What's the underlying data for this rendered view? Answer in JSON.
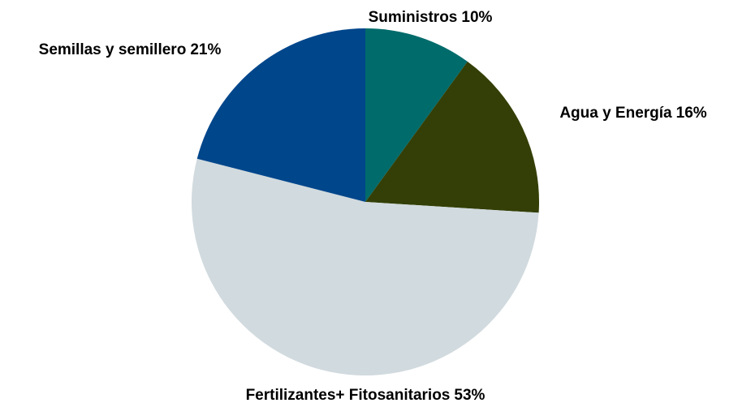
{
  "chart_data": {
    "type": "pie",
    "categories": [
      "Suministros",
      "Agua y Energía",
      "Fertilizantes+ Fitosanitarios",
      "Semillas y semillero"
    ],
    "values": [
      10,
      16,
      53,
      21
    ],
    "value_labels": [
      "10%",
      "16%",
      "53%",
      "21%"
    ],
    "colors": [
      "#006b6b",
      "#333f06",
      "#d1dade",
      "#00468b"
    ]
  }
}
